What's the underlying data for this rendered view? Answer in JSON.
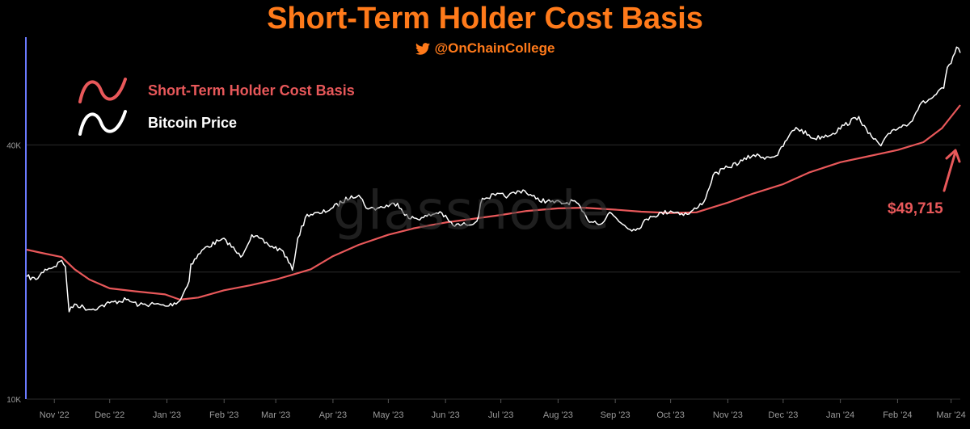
{
  "header": {
    "title": "Short-Term Holder Cost Basis",
    "handle": "@OnChainCollege",
    "handle_icon": "twitter-bird-icon"
  },
  "watermark": "glassnode",
  "annotation": {
    "text": "$49,715"
  },
  "colors": {
    "title": "#ff7a1a",
    "cost_basis": "#e8585a",
    "price": "#ffffff",
    "axis_accent": "#6b7bff",
    "grid": "#2b2b2b",
    "tick": "#9a9a9a"
  },
  "chart_data": {
    "type": "line",
    "title": "Short-Term Holder Cost Basis",
    "xlabel": "",
    "ylabel": "",
    "y_scale": "log",
    "ylim": [
      10000,
      72000
    ],
    "y_ticks": [
      {
        "value": 10000,
        "label": "10K"
      },
      {
        "value": 40000,
        "label": "40K"
      }
    ],
    "x_range": [
      "2022-10-17",
      "2024-03-06"
    ],
    "x_ticks": [
      {
        "date": "2022-11-01",
        "label": "Nov '22"
      },
      {
        "date": "2022-12-01",
        "label": "Dec '22"
      },
      {
        "date": "2023-01-01",
        "label": "Jan '23"
      },
      {
        "date": "2023-02-01",
        "label": "Feb '23"
      },
      {
        "date": "2023-03-01",
        "label": "Mar '23"
      },
      {
        "date": "2023-04-01",
        "label": "Apr '23"
      },
      {
        "date": "2023-05-01",
        "label": "May '23"
      },
      {
        "date": "2023-06-01",
        "label": "Jun '23"
      },
      {
        "date": "2023-07-01",
        "label": "Jul '23"
      },
      {
        "date": "2023-08-01",
        "label": "Aug '23"
      },
      {
        "date": "2023-09-01",
        "label": "Sep '23"
      },
      {
        "date": "2023-10-01",
        "label": "Oct '23"
      },
      {
        "date": "2023-11-01",
        "label": "Nov '23"
      },
      {
        "date": "2023-12-01",
        "label": "Dec '23"
      },
      {
        "date": "2024-01-01",
        "label": "Jan '24"
      },
      {
        "date": "2024-02-01",
        "label": "Feb '24"
      },
      {
        "date": "2024-03-01",
        "label": "Mar '24"
      }
    ],
    "grid": true,
    "legend_position": "top-left",
    "series": [
      {
        "name": "Short-Term Holder Cost Basis",
        "color": "#e8585a",
        "points": [
          [
            "2022-10-17",
            22600
          ],
          [
            "2022-10-25",
            22200
          ],
          [
            "2022-11-05",
            21700
          ],
          [
            "2022-11-12",
            20300
          ],
          [
            "2022-11-20",
            19200
          ],
          [
            "2022-12-01",
            18300
          ],
          [
            "2022-12-15",
            18000
          ],
          [
            "2022-12-31",
            17700
          ],
          [
            "2023-01-08",
            17200
          ],
          [
            "2023-01-18",
            17400
          ],
          [
            "2023-02-01",
            18100
          ],
          [
            "2023-02-15",
            18600
          ],
          [
            "2023-03-01",
            19200
          ],
          [
            "2023-03-10",
            19700
          ],
          [
            "2023-03-20",
            20300
          ],
          [
            "2023-04-01",
            21800
          ],
          [
            "2023-04-15",
            23200
          ],
          [
            "2023-05-01",
            24500
          ],
          [
            "2023-05-15",
            25400
          ],
          [
            "2023-06-01",
            26200
          ],
          [
            "2023-06-15",
            26700
          ],
          [
            "2023-07-01",
            27300
          ],
          [
            "2023-07-15",
            27900
          ],
          [
            "2023-08-01",
            28300
          ],
          [
            "2023-08-15",
            28400
          ],
          [
            "2023-09-01",
            28100
          ],
          [
            "2023-09-15",
            27800
          ],
          [
            "2023-10-01",
            27600
          ],
          [
            "2023-10-15",
            27700
          ],
          [
            "2023-11-01",
            29200
          ],
          [
            "2023-11-15",
            30700
          ],
          [
            "2023-12-01",
            32300
          ],
          [
            "2023-12-15",
            34400
          ],
          [
            "2024-01-01",
            36400
          ],
          [
            "2024-01-15",
            37500
          ],
          [
            "2024-02-01",
            38900
          ],
          [
            "2024-02-15",
            40600
          ],
          [
            "2024-02-25",
            43800
          ],
          [
            "2024-03-06",
            49715
          ]
        ]
      },
      {
        "name": "Bitcoin Price",
        "color": "#ffffff",
        "points": [
          [
            "2022-10-17",
            19500
          ],
          [
            "2022-10-22",
            19200
          ],
          [
            "2022-10-27",
            20300
          ],
          [
            "2022-11-01",
            20600
          ],
          [
            "2022-11-05",
            21300
          ],
          [
            "2022-11-07",
            20600
          ],
          [
            "2022-11-09",
            16100
          ],
          [
            "2022-11-12",
            16800
          ],
          [
            "2022-11-20",
            16300
          ],
          [
            "2022-11-25",
            16500
          ],
          [
            "2022-12-01",
            16900
          ],
          [
            "2022-12-10",
            17200
          ],
          [
            "2022-12-17",
            16700
          ],
          [
            "2022-12-25",
            16800
          ],
          [
            "2023-01-01",
            16600
          ],
          [
            "2023-01-08",
            17100
          ],
          [
            "2023-01-13",
            19000
          ],
          [
            "2023-01-14",
            20900
          ],
          [
            "2023-01-21",
            22700
          ],
          [
            "2023-01-29",
            23700
          ],
          [
            "2023-02-02",
            23800
          ],
          [
            "2023-02-10",
            21700
          ],
          [
            "2023-02-16",
            24500
          ],
          [
            "2023-02-25",
            23200
          ],
          [
            "2023-03-05",
            22400
          ],
          [
            "2023-03-10",
            20200
          ],
          [
            "2023-03-13",
            24100
          ],
          [
            "2023-03-18",
            27400
          ],
          [
            "2023-03-25",
            27500
          ],
          [
            "2023-04-01",
            28400
          ],
          [
            "2023-04-11",
            30300
          ],
          [
            "2023-04-15",
            30400
          ],
          [
            "2023-04-20",
            28200
          ],
          [
            "2023-04-26",
            28400
          ],
          [
            "2023-05-06",
            29100
          ],
          [
            "2023-05-12",
            26800
          ],
          [
            "2023-05-20",
            26900
          ],
          [
            "2023-05-29",
            27800
          ],
          [
            "2023-06-05",
            25800
          ],
          [
            "2023-06-12",
            25900
          ],
          [
            "2023-06-18",
            26400
          ],
          [
            "2023-06-21",
            29900
          ],
          [
            "2023-06-28",
            30400
          ],
          [
            "2023-07-05",
            30300
          ],
          [
            "2023-07-13",
            31300
          ],
          [
            "2023-07-20",
            29800
          ],
          [
            "2023-07-28",
            29300
          ],
          [
            "2023-08-05",
            29100
          ],
          [
            "2023-08-10",
            29500
          ],
          [
            "2023-08-17",
            26600
          ],
          [
            "2023-08-25",
            26100
          ],
          [
            "2023-08-29",
            27700
          ],
          [
            "2023-09-06",
            25800
          ],
          [
            "2023-09-12",
            25100
          ],
          [
            "2023-09-20",
            27100
          ],
          [
            "2023-10-01",
            27900
          ],
          [
            "2023-10-10",
            27400
          ],
          [
            "2023-10-16",
            28500
          ],
          [
            "2023-10-20",
            29900
          ],
          [
            "2023-10-24",
            33900
          ],
          [
            "2023-11-01",
            35400
          ],
          [
            "2023-11-09",
            36700
          ],
          [
            "2023-11-15",
            37900
          ],
          [
            "2023-11-20",
            37400
          ],
          [
            "2023-11-28",
            37800
          ],
          [
            "2023-12-04",
            41900
          ],
          [
            "2023-12-08",
            44000
          ],
          [
            "2023-12-18",
            41400
          ],
          [
            "2023-12-28",
            42600
          ],
          [
            "2024-01-03",
            44500
          ],
          [
            "2024-01-11",
            46700
          ],
          [
            "2024-01-16",
            42600
          ],
          [
            "2024-01-23",
            39800
          ],
          [
            "2024-01-29",
            43300
          ],
          [
            "2024-02-08",
            45300
          ],
          [
            "2024-02-13",
            49700
          ],
          [
            "2024-02-20",
            51800
          ],
          [
            "2024-02-26",
            54500
          ],
          [
            "2024-02-28",
            61100
          ],
          [
            "2024-03-01",
            62400
          ],
          [
            "2024-03-04",
            68200
          ],
          [
            "2024-03-06",
            66100
          ]
        ]
      }
    ]
  }
}
